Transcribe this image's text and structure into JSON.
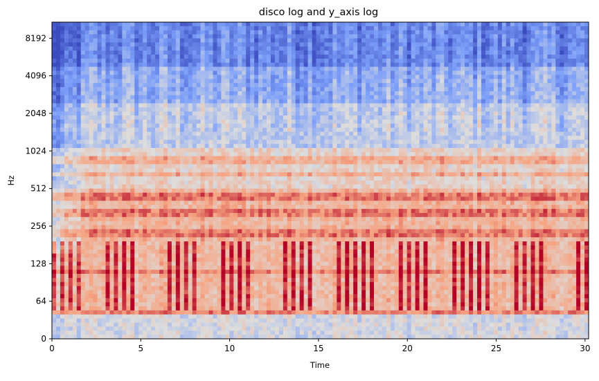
{
  "chart_data": {
    "type": "heatmap",
    "title": "disco log and y_axis log",
    "xlabel": "Time",
    "ylabel": "Hz",
    "x_range": [
      0,
      30.2
    ],
    "x_ticks": [
      0,
      5,
      10,
      15,
      20,
      25,
      30
    ],
    "x_tick_labels": [
      "0",
      "5",
      "10",
      "15",
      "20",
      "25",
      "30"
    ],
    "y_scale": "symlog",
    "y_range": [
      0,
      11025
    ],
    "y_ticks": [
      0,
      64,
      128,
      256,
      512,
      1024,
      2048,
      4096,
      8192
    ],
    "y_tick_labels": [
      "0",
      "64",
      "128",
      "256",
      "512",
      "1024",
      "2048",
      "4096",
      "8192"
    ],
    "colormap": "coolwarm",
    "grid": false,
    "legend": "none",
    "beat_period_s": 0.5,
    "harmonic_bands_hz": [
      110,
      220,
      330,
      440,
      660,
      880
    ]
  }
}
